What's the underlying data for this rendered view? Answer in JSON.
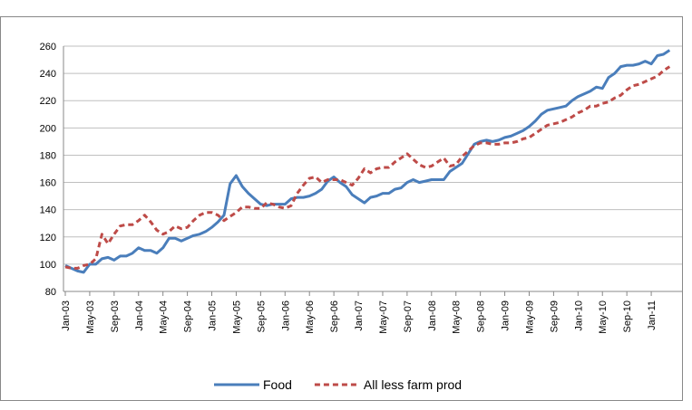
{
  "chart_data": {
    "type": "line",
    "categories": [
      "Jan-03",
      null,
      null,
      null,
      "May-03",
      null,
      null,
      null,
      "Sep-03",
      null,
      null,
      null,
      "Jan-04",
      null,
      null,
      null,
      "May-04",
      null,
      null,
      null,
      "Sep-04",
      null,
      null,
      null,
      "Jan-05",
      null,
      null,
      null,
      "May-05",
      null,
      null,
      null,
      "Sep-05",
      null,
      null,
      null,
      "Jan-06",
      null,
      null,
      null,
      "May-06",
      null,
      null,
      null,
      "Sep-06",
      null,
      null,
      null,
      "Jan-07",
      null,
      null,
      null,
      "May-07",
      null,
      null,
      null,
      "Sep-07",
      null,
      null,
      null,
      "Jan-08",
      null,
      null,
      null,
      "May-08",
      null,
      null,
      null,
      "Sep-08",
      null,
      null,
      null,
      "Jan-09",
      null,
      null,
      null,
      "May-09",
      null,
      null,
      null,
      "Sep-09",
      null,
      null,
      null,
      "Jan-10",
      null,
      null,
      null,
      "May-10",
      null,
      null,
      null,
      "Sep-10",
      null,
      null,
      null,
      "Jan-11",
      null,
      null,
      null
    ],
    "series": [
      {
        "name": "Food",
        "color": "#4a7ebb",
        "dashed": false,
        "values": [
          99,
          97,
          95,
          94,
          100,
          100,
          104,
          105,
          103,
          106,
          106,
          108,
          112,
          110,
          110,
          108,
          112,
          119,
          119,
          117,
          119,
          121,
          122,
          124,
          127,
          131,
          136,
          159,
          165,
          157,
          152,
          148,
          144,
          143,
          144,
          144,
          144,
          148,
          149,
          149,
          150,
          152,
          155,
          161,
          164,
          160,
          157,
          151,
          148,
          145,
          149,
          150,
          152,
          152,
          155,
          156,
          160,
          162,
          160,
          161,
          162,
          162,
          162,
          168,
          171,
          174,
          181,
          188,
          190,
          191,
          190,
          191,
          193,
          194,
          196,
          198,
          201,
          205,
          210,
          213,
          214,
          215,
          216,
          220,
          223,
          225,
          227,
          230,
          229,
          237,
          240,
          245,
          246,
          246,
          247,
          249,
          247,
          253,
          254,
          257
        ]
      },
      {
        "name": "All less farm prod",
        "color": "#be4b48",
        "dashed": true,
        "values": [
          98,
          97,
          97,
          99,
          100,
          104,
          122,
          115,
          122,
          128,
          129,
          129,
          132,
          136,
          131,
          125,
          122,
          124,
          128,
          126,
          127,
          132,
          136,
          138,
          138,
          136,
          132,
          135,
          138,
          142,
          142,
          141,
          141,
          145,
          144,
          142,
          141,
          143,
          152,
          158,
          163,
          164,
          160,
          162,
          162,
          162,
          160,
          158,
          163,
          170,
          167,
          170,
          171,
          171,
          175,
          178,
          181,
          177,
          173,
          171,
          172,
          175,
          178,
          172,
          173,
          179,
          183,
          187,
          189,
          189,
          188,
          188,
          189,
          189,
          190,
          192,
          193,
          196,
          199,
          202,
          203,
          204,
          206,
          208,
          211,
          213,
          216,
          216,
          218,
          219,
          222,
          224,
          228,
          231,
          232,
          234,
          236,
          238,
          242,
          245
        ]
      }
    ],
    "ylim": [
      80,
      260
    ],
    "yticks": [
      80,
      100,
      120,
      140,
      160,
      180,
      200,
      220,
      240,
      260
    ],
    "grid": true,
    "legend": "bottom"
  }
}
